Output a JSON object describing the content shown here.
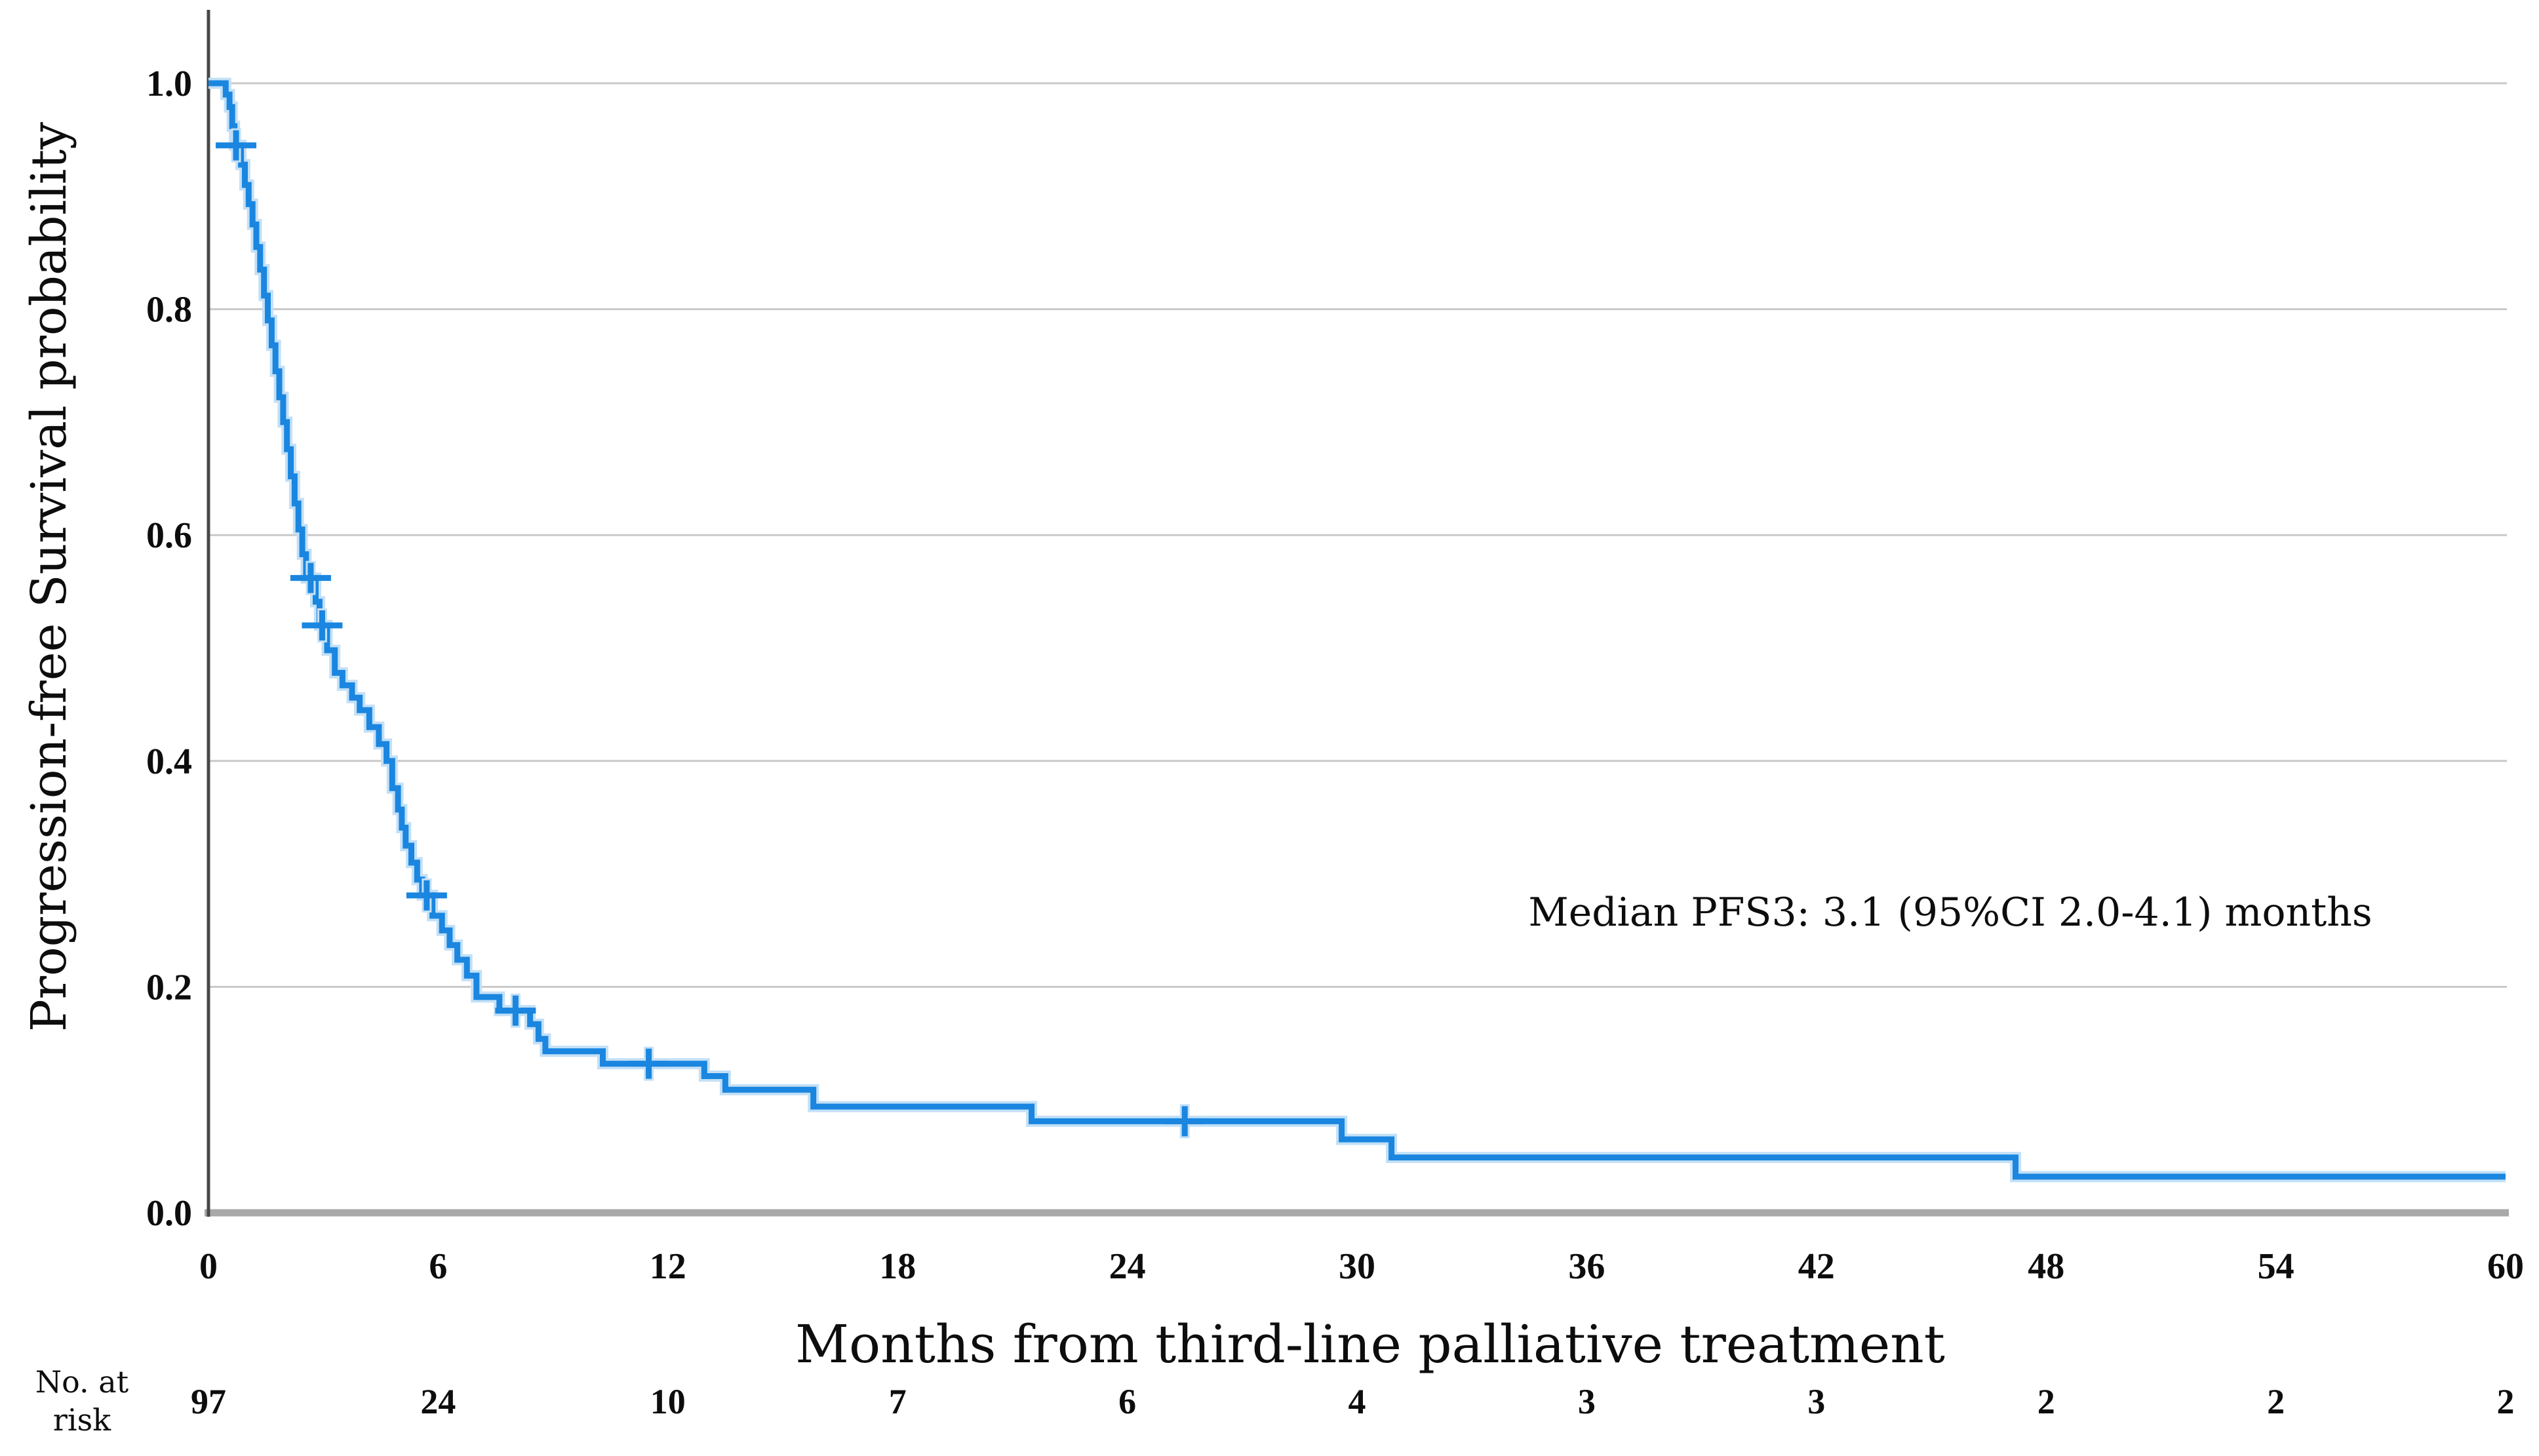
{
  "chart_data": {
    "type": "line",
    "subtype": "kaplan-meier-step-curve",
    "title": "",
    "xlabel": "Months from third-line palliative treatment",
    "ylabel": "Progression-free Survival probability",
    "annotation": "Median PFS3: 3.1 (95%CI 2.0-4.1) months",
    "xlim": [
      0,
      60
    ],
    "ylim": [
      0.0,
      1.0
    ],
    "grid": "horizontal-only",
    "legend": "none",
    "x_ticks": [
      {
        "label": "0",
        "value": 0
      },
      {
        "label": "6",
        "value": 6
      },
      {
        "label": "12",
        "value": 12
      },
      {
        "label": "18",
        "value": 18
      },
      {
        "label": "24",
        "value": 24
      },
      {
        "label": "30",
        "value": 30
      },
      {
        "label": "36",
        "value": 36
      },
      {
        "label": "42",
        "value": 42
      },
      {
        "label": "48",
        "value": 48
      },
      {
        "label": "54",
        "value": 54
      },
      {
        "label": "60",
        "value": 60
      }
    ],
    "y_ticks": [
      {
        "label": "1.0",
        "value": 1.0
      },
      {
        "label": "0.8",
        "value": 0.8
      },
      {
        "label": "0.6",
        "value": 0.6
      },
      {
        "label": "0.4",
        "value": 0.4
      },
      {
        "label": "0.2",
        "value": 0.2
      },
      {
        "label": "0.0",
        "value": 0.0
      }
    ],
    "series": [
      {
        "name": "PFS3",
        "median_months": 3.1,
        "ci95": "2.0-4.1",
        "start": [
          0,
          1.0
        ],
        "steps": [
          [
            0.45,
            0.99
          ],
          [
            0.55,
            0.979
          ],
          [
            0.62,
            0.962
          ],
          [
            0.68,
            0.945
          ],
          [
            0.85,
            0.928
          ],
          [
            0.95,
            0.91
          ],
          [
            1.05,
            0.893
          ],
          [
            1.15,
            0.875
          ],
          [
            1.25,
            0.855
          ],
          [
            1.35,
            0.835
          ],
          [
            1.45,
            0.812
          ],
          [
            1.55,
            0.79
          ],
          [
            1.65,
            0.768
          ],
          [
            1.75,
            0.745
          ],
          [
            1.85,
            0.722
          ],
          [
            1.95,
            0.7
          ],
          [
            2.05,
            0.676
          ],
          [
            2.15,
            0.652
          ],
          [
            2.25,
            0.628
          ],
          [
            2.35,
            0.605
          ],
          [
            2.45,
            0.583
          ],
          [
            2.55,
            0.562
          ],
          [
            2.8,
            0.541
          ],
          [
            2.9,
            0.52
          ],
          [
            3.1,
            0.498
          ],
          [
            3.3,
            0.478
          ],
          [
            3.5,
            0.467
          ],
          [
            3.75,
            0.456
          ],
          [
            3.95,
            0.445
          ],
          [
            4.2,
            0.43
          ],
          [
            4.45,
            0.415
          ],
          [
            4.65,
            0.4
          ],
          [
            4.8,
            0.376
          ],
          [
            4.95,
            0.357
          ],
          [
            5.05,
            0.341
          ],
          [
            5.15,
            0.325
          ],
          [
            5.3,
            0.31
          ],
          [
            5.45,
            0.295
          ],
          [
            5.58,
            0.281
          ],
          [
            5.85,
            0.263
          ],
          [
            6.1,
            0.25
          ],
          [
            6.3,
            0.237
          ],
          [
            6.5,
            0.224
          ],
          [
            6.75,
            0.21
          ],
          [
            7.0,
            0.191
          ],
          [
            7.6,
            0.179
          ],
          [
            8.4,
            0.167
          ],
          [
            8.62,
            0.154
          ],
          [
            8.8,
            0.143
          ],
          [
            10.3,
            0.132
          ],
          [
            12.95,
            0.121
          ],
          [
            13.5,
            0.109
          ],
          [
            15.8,
            0.094
          ],
          [
            21.5,
            0.081
          ],
          [
            29.6,
            0.065
          ],
          [
            30.9,
            0.049
          ],
          [
            47.2,
            0.032
          ]
        ],
        "end_month": 60,
        "censor_marks": [
          [
            0.72,
            0.945
          ],
          [
            2.67,
            0.562
          ],
          [
            2.97,
            0.52
          ],
          [
            5.7,
            0.281
          ],
          [
            8.02,
            0.179
          ],
          [
            11.5,
            0.132
          ],
          [
            25.5,
            0.081
          ]
        ]
      }
    ],
    "risk_table": {
      "label_line1": "No. at",
      "label_line2": "risk",
      "months": [
        0,
        6,
        12,
        18,
        24,
        30,
        36,
        42,
        48,
        54,
        60
      ],
      "values": [
        "97",
        "24",
        "10",
        "7",
        "6",
        "4",
        "3",
        "3",
        "2",
        "2",
        "2"
      ]
    },
    "colors": {
      "curve": "#1a86e0",
      "curve_halo": "#c3e0f7",
      "grid": "#c9c9c9",
      "x_axis": "#a9a9a9",
      "y_axis": "#474747",
      "text": "#0d0d0d",
      "background": "#ffffff"
    }
  }
}
